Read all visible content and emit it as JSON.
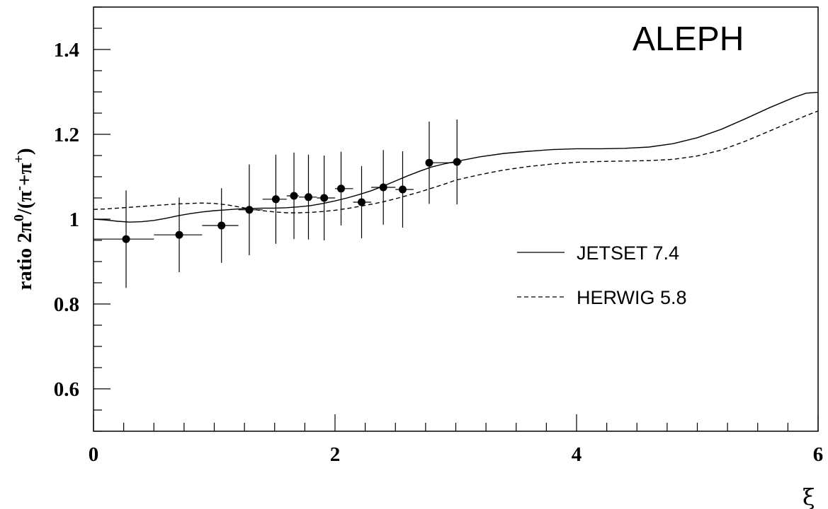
{
  "chart_data": {
    "type": "scatter",
    "experiment": "ALEPH",
    "xlabel": "ξ",
    "ylabel": {
      "prefix": "ratio 2π",
      "sup1": "0",
      "mid1": "/(π",
      "sup2": "-",
      "mid2": "+π",
      "sup3": "+",
      "suffix": ")"
    },
    "xlim": [
      0,
      6
    ],
    "ylim": [
      0.5,
      1.5
    ],
    "x_major_ticks": [
      0,
      2,
      4,
      6
    ],
    "x_tick_labels": [
      "0",
      "2",
      "4",
      "6"
    ],
    "y_major_ticks": [
      0.6,
      0.8,
      1.0,
      1.2,
      1.4
    ],
    "y_tick_labels": [
      "0.6",
      "0.8",
      "1",
      "1.2",
      "1.4"
    ],
    "data_points": [
      {
        "x": 0.27,
        "y": 0.953,
        "xerr": [
          0.0,
          0.5
        ],
        "yerr": 0.115
      },
      {
        "x": 0.71,
        "y": 0.963,
        "xerr": [
          0.5,
          0.9
        ],
        "yerr": 0.088
      },
      {
        "x": 1.06,
        "y": 0.985,
        "xerr": [
          0.9,
          1.2
        ],
        "yerr": 0.088
      },
      {
        "x": 1.29,
        "y": 1.022,
        "xerr": [
          1.2,
          1.4
        ],
        "yerr": 0.107
      },
      {
        "x": 1.51,
        "y": 1.047,
        "xerr": [
          1.4,
          1.6
        ],
        "yerr": 0.105
      },
      {
        "x": 1.66,
        "y": 1.055,
        "xerr": [
          1.6,
          1.7
        ],
        "yerr": 0.102
      },
      {
        "x": 1.78,
        "y": 1.052,
        "xerr": [
          1.7,
          1.85
        ],
        "yerr": 0.1
      },
      {
        "x": 1.91,
        "y": 1.05,
        "xerr": [
          1.85,
          2.0
        ],
        "yerr": 0.1
      },
      {
        "x": 2.05,
        "y": 1.072,
        "xerr": [
          2.0,
          2.15
        ],
        "yerr": 0.087
      },
      {
        "x": 2.22,
        "y": 1.04,
        "xerr": [
          2.15,
          2.3
        ],
        "yerr": 0.085
      },
      {
        "x": 2.4,
        "y": 1.075,
        "xerr": [
          2.3,
          2.5
        ],
        "yerr": 0.088
      },
      {
        "x": 2.56,
        "y": 1.07,
        "xerr": [
          2.5,
          2.65
        ],
        "yerr": 0.09
      },
      {
        "x": 2.78,
        "y": 1.133,
        "xerr": [
          2.75,
          3.0
        ],
        "yerr": 0.097
      },
      {
        "x": 3.01,
        "y": 1.135,
        "xerr": [
          3.0,
          3.05
        ],
        "yerr": 0.1
      }
    ],
    "series": [
      {
        "name": "JETSET 7.4",
        "style": "solid",
        "x": [
          0,
          0.1,
          0.2,
          0.3,
          0.4,
          0.5,
          0.6,
          0.7,
          0.8,
          0.9,
          1.0,
          1.1,
          1.2,
          1.3,
          1.4,
          1.5,
          1.6,
          1.7,
          1.8,
          1.9,
          2.0,
          2.1,
          2.2,
          2.3,
          2.4,
          2.5,
          2.6,
          2.7,
          2.8,
          2.9,
          3.0,
          3.2,
          3.4,
          3.6,
          3.8,
          4.0,
          4.2,
          4.4,
          4.6,
          4.8,
          5.0,
          5.2,
          5.4,
          5.6,
          5.8,
          5.9,
          6.0
        ],
        "y": [
          1.0,
          0.998,
          0.995,
          0.993,
          0.994,
          0.997,
          1.002,
          1.008,
          1.013,
          1.017,
          1.02,
          1.022,
          1.024,
          1.025,
          1.026,
          1.026,
          1.027,
          1.029,
          1.032,
          1.037,
          1.043,
          1.05,
          1.058,
          1.067,
          1.078,
          1.09,
          1.102,
          1.113,
          1.123,
          1.13,
          1.136,
          1.147,
          1.155,
          1.16,
          1.164,
          1.166,
          1.166,
          1.167,
          1.17,
          1.178,
          1.192,
          1.212,
          1.237,
          1.263,
          1.287,
          1.297,
          1.299
        ]
      },
      {
        "name": "HERWIG 5.8",
        "style": "dashed",
        "x": [
          0,
          0.1,
          0.2,
          0.3,
          0.4,
          0.5,
          0.6,
          0.7,
          0.8,
          0.9,
          1.0,
          1.1,
          1.2,
          1.3,
          1.4,
          1.5,
          1.6,
          1.7,
          1.8,
          1.9,
          2.0,
          2.1,
          2.2,
          2.3,
          2.4,
          2.5,
          2.6,
          2.7,
          2.8,
          2.9,
          3.0,
          3.2,
          3.4,
          3.6,
          3.8,
          4.0,
          4.2,
          4.4,
          4.6,
          4.8,
          5.0,
          5.2,
          5.4,
          5.6,
          5.8,
          5.9,
          6.0
        ],
        "y": [
          1.023,
          1.024,
          1.026,
          1.028,
          1.03,
          1.032,
          1.034,
          1.036,
          1.037,
          1.038,
          1.037,
          1.034,
          1.029,
          1.024,
          1.02,
          1.017,
          1.015,
          1.015,
          1.016,
          1.018,
          1.021,
          1.025,
          1.03,
          1.035,
          1.041,
          1.048,
          1.056,
          1.064,
          1.073,
          1.082,
          1.092,
          1.105,
          1.116,
          1.124,
          1.13,
          1.134,
          1.136,
          1.137,
          1.138,
          1.141,
          1.149,
          1.163,
          1.184,
          1.208,
          1.232,
          1.244,
          1.255
        ]
      }
    ],
    "legend_placement": "right"
  }
}
